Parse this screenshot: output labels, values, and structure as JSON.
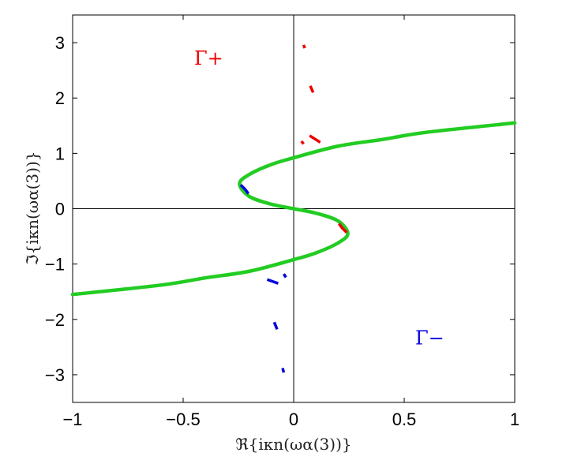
{
  "chart_data": {
    "type": "line",
    "title": "",
    "xlabel": "ℜ{iκn(ωα(3))}",
    "ylabel": "ℑ{iκn(ωα(3))}",
    "xlim": [
      -1,
      1
    ],
    "ylim": [
      -3.5,
      3.5
    ],
    "xticks": [
      -1,
      -0.5,
      0,
      0.5,
      1
    ],
    "xtick_labels": [
      "−1",
      "−0.5",
      "0",
      "0.5",
      "1"
    ],
    "yticks": [
      3,
      2,
      1,
      0,
      -1,
      -2,
      -3
    ],
    "ytick_labels": [
      "3",
      "2",
      "1",
      "0",
      "−1",
      "−2",
      "−3"
    ],
    "grid": false,
    "reference_lines": {
      "x": 0,
      "y": 0,
      "color": "#000000"
    },
    "colors": {
      "green": "#22cc22",
      "red": "#ee0000",
      "blue": "#0000dd"
    },
    "annotations": [
      {
        "text": "Γ+",
        "x": -0.45,
        "y": 2.6,
        "color": "#ee0000"
      },
      {
        "text": "Γ−",
        "x": 0.55,
        "y": -2.45,
        "color": "#0000dd"
      }
    ],
    "series": [
      {
        "color": "#22cc22",
        "points": [
          [
            -1.0,
            -1.55
          ],
          [
            -0.6,
            -1.38
          ],
          [
            -0.4,
            -1.25
          ],
          [
            -0.2,
            -1.13
          ],
          [
            0.0,
            -0.92
          ],
          [
            0.1,
            -0.8
          ],
          [
            0.2,
            -0.62
          ],
          [
            0.245,
            -0.45
          ],
          [
            0.2,
            -0.22
          ],
          [
            0.1,
            -0.08
          ],
          [
            0.0,
            0.0
          ],
          [
            -0.1,
            0.08
          ],
          [
            -0.2,
            0.22
          ],
          [
            -0.245,
            0.45
          ],
          [
            -0.2,
            0.62
          ],
          [
            -0.1,
            0.8
          ],
          [
            0.0,
            0.92
          ],
          [
            0.2,
            1.13
          ],
          [
            0.4,
            1.25
          ],
          [
            0.6,
            1.38
          ],
          [
            1.0,
            1.55
          ]
        ]
      },
      {
        "color": "#0000dd",
        "points": [
          [
            -0.24,
            0.43
          ],
          [
            -0.22,
            0.35
          ],
          [
            -0.205,
            0.27
          ]
        ]
      },
      {
        "color": "#ee0000",
        "points": [
          [
            0.24,
            -0.43
          ],
          [
            0.22,
            -0.35
          ],
          [
            0.205,
            -0.27
          ]
        ]
      },
      {
        "color": "#ee0000",
        "points": [
          [
            0.045,
            2.96
          ],
          [
            0.05,
            2.9
          ]
        ]
      },
      {
        "color": "#ee0000",
        "points": [
          [
            0.075,
            2.22
          ],
          [
            0.088,
            2.1
          ]
        ]
      },
      {
        "color": "#ee0000",
        "points": [
          [
            0.072,
            1.32
          ],
          [
            0.12,
            1.2
          ]
        ]
      },
      {
        "color": "#ee0000",
        "points": [
          [
            0.035,
            1.22
          ],
          [
            0.045,
            1.17
          ]
        ]
      },
      {
        "color": "#0000dd",
        "points": [
          [
            -0.12,
            -1.28
          ],
          [
            -0.07,
            -1.35
          ]
        ]
      },
      {
        "color": "#0000dd",
        "points": [
          [
            -0.045,
            -1.18
          ],
          [
            -0.035,
            -1.24
          ]
        ]
      },
      {
        "color": "#0000dd",
        "points": [
          [
            -0.088,
            -2.05
          ],
          [
            -0.075,
            -2.18
          ]
        ]
      },
      {
        "color": "#0000dd",
        "points": [
          [
            -0.05,
            -2.88
          ],
          [
            -0.045,
            -2.96
          ]
        ]
      }
    ]
  }
}
